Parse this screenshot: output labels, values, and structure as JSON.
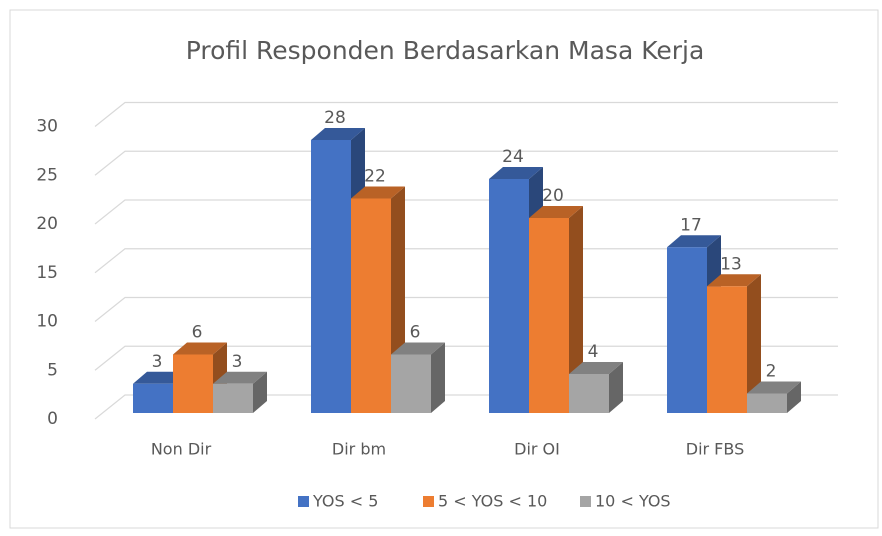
{
  "chart_data": {
    "type": "bar3d",
    "title": "Profil Responden  Berdasarkan Masa Kerja",
    "categories": [
      "Non Dir",
      "Dir bm",
      "Dir OI",
      "Dir FBS"
    ],
    "series": [
      {
        "name": "YOS < 5",
        "color": "#4472c4",
        "values": [
          3,
          28,
          24,
          17
        ]
      },
      {
        "name": "5 < YOS < 10",
        "color": "#ed7d31",
        "values": [
          6,
          22,
          20,
          13
        ]
      },
      {
        "name": "10 < YOS",
        "color": "#a5a5a5",
        "values": [
          3,
          6,
          4,
          2
        ]
      }
    ],
    "ylim": [
      0,
      30
    ],
    "yticks": [
      0,
      5,
      10,
      15,
      20,
      25,
      30
    ],
    "grid": true,
    "legend": "bottom"
  }
}
